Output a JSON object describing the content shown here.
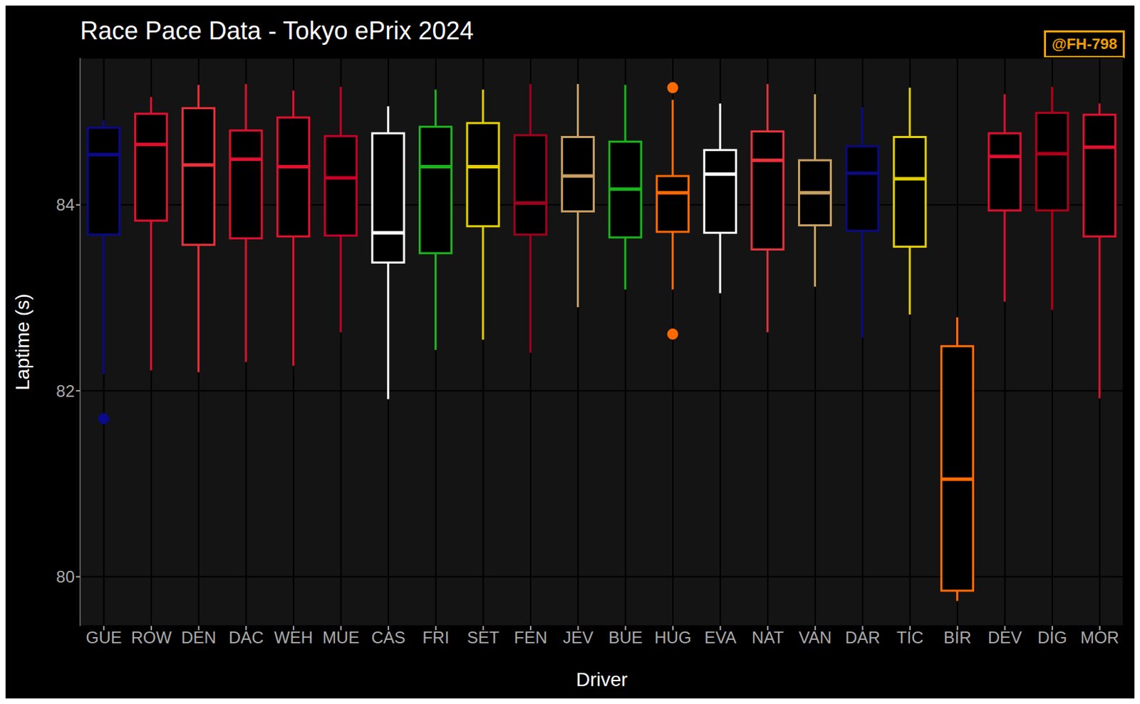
{
  "chart_data": {
    "type": "box",
    "title": "Race Pace Data - Tokyo ePrix 2024",
    "x_label": "Driver",
    "y_label": "Laptime (s)",
    "annotations": [
      "@FH-798"
    ],
    "categories": [
      "GUE",
      "ROW",
      "DEN",
      "DAC",
      "WEH",
      "MUE",
      "CAS",
      "FRI",
      "SET",
      "FEN",
      "JEV",
      "BUE",
      "HUG",
      "EVA",
      "NAT",
      "VAN",
      "DAR",
      "TIC",
      "BIR",
      "DEV",
      "DIG",
      "MOR"
    ],
    "colors": [
      "#0a0a8c",
      "#e0102f",
      "#e8323c",
      "#e0102f",
      "#e0102f",
      "#c8002a",
      "#ffffff",
      "#1db31d",
      "#e3d000",
      "#a0001e",
      "#c8a060",
      "#1db31d",
      "#ff6a00",
      "#ffffff",
      "#e8323c",
      "#c8a060",
      "#0b0b80",
      "#e3d000",
      "#ff6a00",
      "#e0102f",
      "#b0001a",
      "#e0102f"
    ],
    "whisker_low": [
      82.18,
      82.22,
      82.2,
      82.31,
      82.27,
      82.63,
      81.91,
      82.44,
      82.55,
      82.41,
      82.9,
      83.09,
      83.09,
      83.05,
      82.63,
      83.12,
      82.57,
      82.82,
      79.74,
      82.96,
      82.87,
      81.92
    ],
    "q1": [
      83.68,
      83.83,
      83.57,
      83.64,
      83.66,
      83.67,
      83.38,
      83.48,
      83.77,
      83.68,
      83.93,
      83.65,
      83.71,
      83.7,
      83.52,
      83.78,
      83.72,
      83.55,
      79.85,
      83.94,
      83.94,
      83.66
    ],
    "median": [
      84.54,
      84.65,
      84.43,
      84.49,
      84.41,
      84.29,
      83.7,
      84.41,
      84.41,
      84.02,
      84.31,
      84.17,
      84.13,
      84.33,
      84.48,
      84.13,
      84.34,
      84.28,
      81.05,
      84.52,
      84.55,
      84.62
    ],
    "q3": [
      84.83,
      84.98,
      85.04,
      84.8,
      84.94,
      84.74,
      84.77,
      84.84,
      84.88,
      84.75,
      84.73,
      84.68,
      84.31,
      84.59,
      84.79,
      84.48,
      84.63,
      84.73,
      82.48,
      84.77,
      84.99,
      84.97
    ],
    "whisker_high": [
      84.91,
      85.16,
      85.29,
      85.3,
      85.23,
      85.27,
      85.06,
      85.24,
      85.24,
      85.3,
      85.3,
      85.29,
      85.13,
      85.09,
      85.3,
      85.19,
      85.05,
      85.26,
      82.79,
      85.19,
      85.27,
      85.09
    ],
    "outliers": [
      [
        81.7
      ],
      [],
      [],
      [],
      [],
      [],
      [],
      [],
      [],
      [],
      [],
      [],
      [
        85.26,
        82.61
      ],
      [],
      [],
      [],
      [],
      [],
      [],
      [],
      [],
      []
    ],
    "ylim": [
      79.47,
      85.58
    ],
    "yticks": [
      80,
      82,
      84
    ],
    "grid": true
  }
}
